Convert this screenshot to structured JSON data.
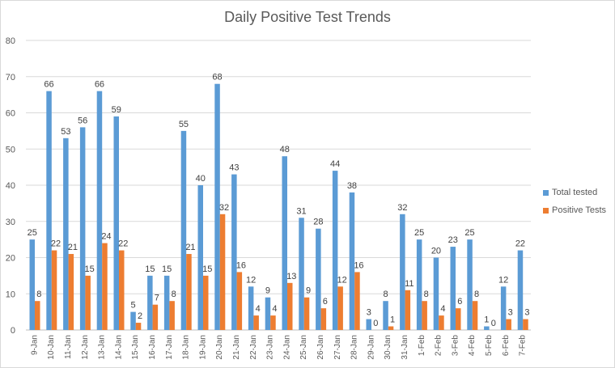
{
  "chart_data": {
    "type": "bar",
    "title": "Daily Positive Test Trends",
    "xlabel": "",
    "ylabel": "",
    "ylim": [
      0,
      80
    ],
    "yticks": [
      0,
      10,
      20,
      30,
      40,
      50,
      60,
      70,
      80
    ],
    "grid": true,
    "legend_position": "right",
    "categories": [
      "9-Jan",
      "10-Jan",
      "11-Jan",
      "12-Jan",
      "13-Jan",
      "14-Jan",
      "15-Jan",
      "16-Jan",
      "17-Jan",
      "18-Jan",
      "19-Jan",
      "20-Jan",
      "21-Jan",
      "22-Jan",
      "23-Jan",
      "24-Jan",
      "25-Jan",
      "26-Jan",
      "27-Jan",
      "28-Jan",
      "29-Jan",
      "30-Jan",
      "31-Jan",
      "1-Feb",
      "2-Feb",
      "3-Feb",
      "4-Feb",
      "5-Feb",
      "6-Feb",
      "7-Feb"
    ],
    "series": [
      {
        "name": "Total tested",
        "color": "#5b9bd5",
        "values": [
          25,
          66,
          53,
          56,
          66,
          59,
          5,
          15,
          15,
          55,
          40,
          68,
          43,
          12,
          9,
          48,
          31,
          28,
          44,
          38,
          3,
          8,
          32,
          25,
          20,
          23,
          25,
          1,
          12,
          22
        ]
      },
      {
        "name": "Positive Tests",
        "color": "#ed7d31",
        "values": [
          8,
          22,
          21,
          15,
          24,
          22,
          2,
          7,
          8,
          21,
          15,
          32,
          16,
          4,
          4,
          13,
          9,
          6,
          12,
          16,
          0,
          1,
          11,
          8,
          4,
          6,
          8,
          0,
          3,
          3
        ]
      }
    ]
  }
}
